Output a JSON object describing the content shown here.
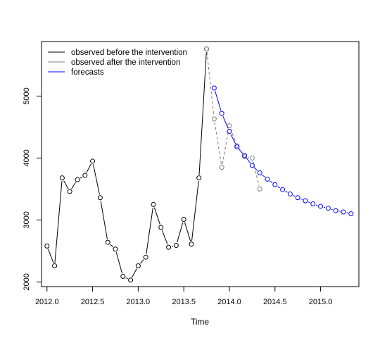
{
  "chart_data": {
    "type": "line",
    "xlabel": "Time",
    "ylabel": "",
    "xlim": [
      2011.94,
      2015.42
    ],
    "ylim": [
      1925,
      5880
    ],
    "x_ticks": [
      2012.0,
      2012.5,
      2013.0,
      2013.5,
      2014.0,
      2014.5,
      2015.0
    ],
    "x_tick_labels": [
      "2012.0",
      "2012.5",
      "2013.0",
      "2013.5",
      "2014.0",
      "2014.5",
      "2015.0"
    ],
    "y_ticks": [
      2000,
      3000,
      4000,
      5000
    ],
    "y_tick_labels": [
      "2000",
      "3000",
      "4000",
      "5000"
    ],
    "grid": false,
    "legend_position": "top-left",
    "series": [
      {
        "name": "observed before the intervention",
        "color": "#000000",
        "line_style": "solid",
        "x": [
          2012.0,
          2012.0833,
          2012.1667,
          2012.25,
          2012.3333,
          2012.4167,
          2012.5,
          2012.5833,
          2012.6667,
          2012.75,
          2012.8333,
          2012.9167,
          2013.0,
          2013.0833,
          2013.1667,
          2013.25,
          2013.3333,
          2013.4167,
          2013.5,
          2013.5833,
          2013.6667,
          2013.75
        ],
        "y": [
          2580,
          2260,
          3680,
          3460,
          3650,
          3720,
          3950,
          3360,
          2640,
          2530,
          2090,
          2030,
          2260,
          2400,
          3250,
          2880,
          2560,
          2590,
          3010,
          2610,
          3680,
          5760
        ]
      },
      {
        "name": "observed after the intervention",
        "color": "#7f7f7f",
        "line_style": "dashed",
        "x": [
          2013.75,
          2013.8333,
          2013.9167,
          2014.0,
          2014.0833,
          2014.1667,
          2014.25,
          2014.3333
        ],
        "y": [
          5760,
          4630,
          3850,
          4520,
          4200,
          4020,
          4000,
          3500
        ]
      },
      {
        "name": "forecasts",
        "color": "#0000ff",
        "line_style": "solid",
        "x": [
          2013.8333,
          2013.9167,
          2014.0,
          2014.0833,
          2014.1667,
          2014.25,
          2014.3333,
          2014.4167,
          2014.5,
          2014.5833,
          2014.6667,
          2014.75,
          2014.8333,
          2014.9167,
          2015.0,
          2015.0833,
          2015.1667,
          2015.25,
          2015.3333
        ],
        "y": [
          5130,
          4720,
          4430,
          4180,
          4040,
          3880,
          3760,
          3660,
          3570,
          3490,
          3420,
          3360,
          3310,
          3260,
          3220,
          3190,
          3150,
          3130,
          3100
        ]
      }
    ]
  }
}
